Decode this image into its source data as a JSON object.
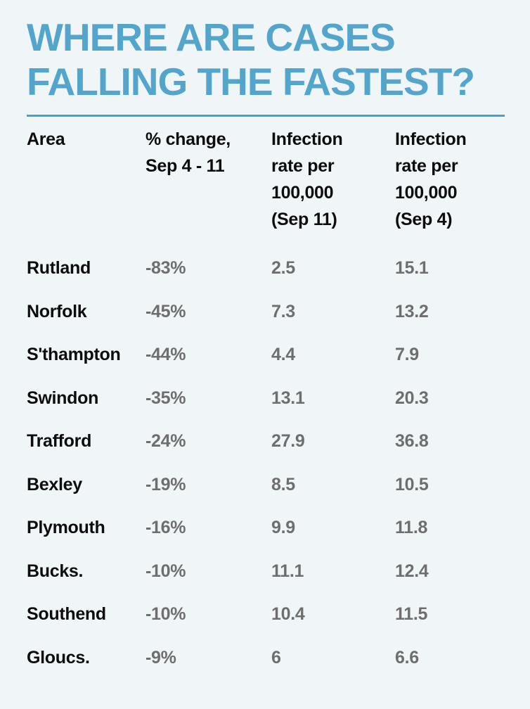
{
  "page": {
    "background_color": "#F0F5F8",
    "accent_color": "#53A5CC",
    "value_text_color": "#6E6E6E"
  },
  "title": "WHERE ARE CASES\nFALLING THE FASTEST?",
  "table": {
    "columns": [
      {
        "label": "Area"
      },
      {
        "label": "% change,\nSep 4 - 11"
      },
      {
        "label": "Infection\nrate per\n100,000\n(Sep 11)"
      },
      {
        "label": "Infection\nrate per\n100,000\n(Sep 4)"
      }
    ],
    "rows": [
      {
        "area": "Rutland",
        "pct_change": "-83%",
        "rate_sep11": "2.5",
        "rate_sep4": "15.1"
      },
      {
        "area": "Norfolk",
        "pct_change": "-45%",
        "rate_sep11": "7.3",
        "rate_sep4": "13.2"
      },
      {
        "area": "S'thampton",
        "pct_change": "-44%",
        "rate_sep11": "4.4",
        "rate_sep4": "7.9"
      },
      {
        "area": "Swindon",
        "pct_change": "-35%",
        "rate_sep11": "13.1",
        "rate_sep4": "20.3"
      },
      {
        "area": "Trafford",
        "pct_change": "-24%",
        "rate_sep11": "27.9",
        "rate_sep4": "36.8"
      },
      {
        "area": "Bexley",
        "pct_change": "-19%",
        "rate_sep11": "8.5",
        "rate_sep4": "10.5"
      },
      {
        "area": "Plymouth",
        "pct_change": "-16%",
        "rate_sep11": "9.9",
        "rate_sep4": "11.8"
      },
      {
        "area": "Bucks.",
        "pct_change": "-10%",
        "rate_sep11": "11.1",
        "rate_sep4": "12.4"
      },
      {
        "area": "Southend",
        "pct_change": "-10%",
        "rate_sep11": "10.4",
        "rate_sep4": "11.5"
      },
      {
        "area": "Gloucs.",
        "pct_change": "-9%",
        "rate_sep11": "6",
        "rate_sep4": "6.6"
      }
    ]
  },
  "chart_data": {
    "type": "table",
    "title": "WHERE ARE CASES FALLING THE FASTEST?",
    "columns": [
      "Area",
      "% change, Sep 4 - 11",
      "Infection rate per 100,000 (Sep 11)",
      "Infection rate per 100,000 (Sep 4)"
    ],
    "rows": [
      [
        "Rutland",
        -83,
        2.5,
        15.1
      ],
      [
        "Norfolk",
        -45,
        7.3,
        13.2
      ],
      [
        "S'thampton",
        -44,
        4.4,
        7.9
      ],
      [
        "Swindon",
        -35,
        13.1,
        20.3
      ],
      [
        "Trafford",
        -24,
        27.9,
        36.8
      ],
      [
        "Bexley",
        -19,
        8.5,
        10.5
      ],
      [
        "Plymouth",
        -16,
        9.9,
        11.8
      ],
      [
        "Bucks.",
        -10,
        11.1,
        12.4
      ],
      [
        "Southend",
        -10,
        10.4,
        11.5
      ],
      [
        "Gloucs.",
        -9,
        6,
        6.6
      ]
    ]
  }
}
